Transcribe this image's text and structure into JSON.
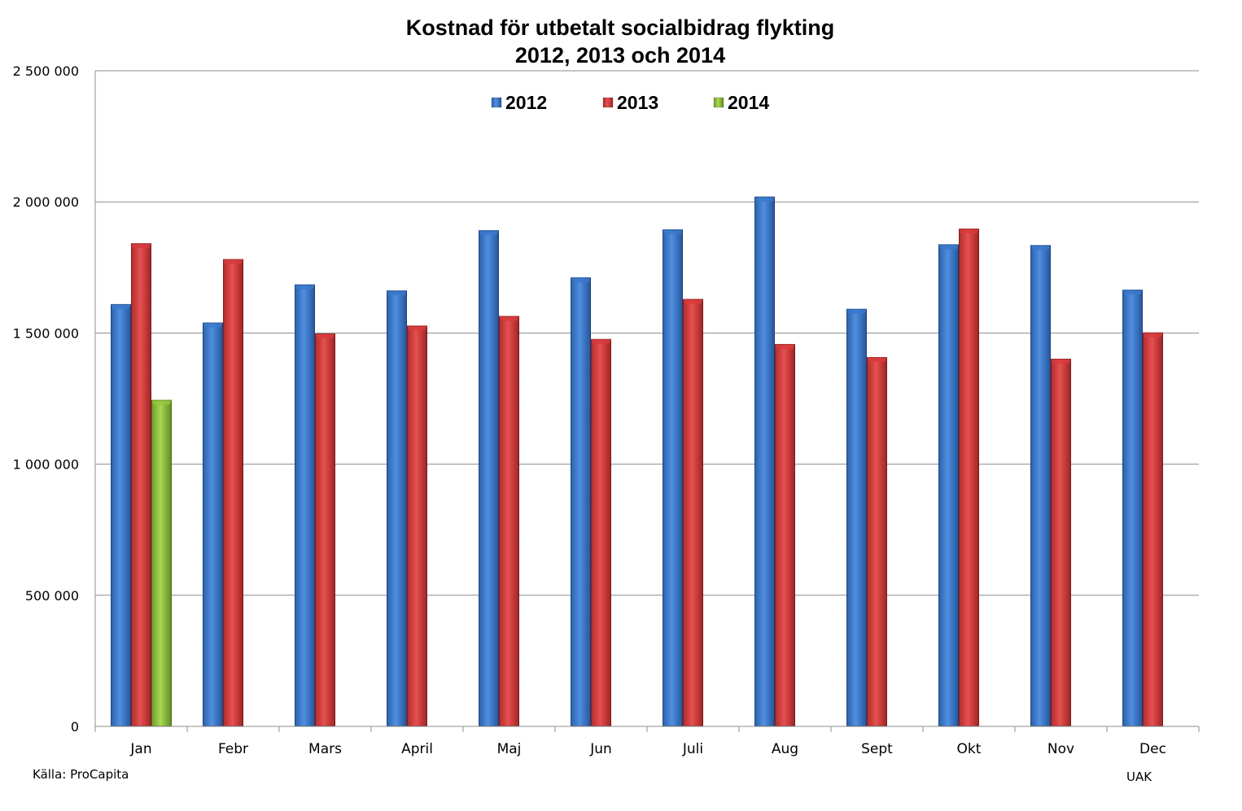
{
  "chart_data": {
    "type": "bar",
    "title": [
      "Kostnad för utbetalt socialbidrag flykting",
      "2012, 2013 och 2014"
    ],
    "xlabel": "",
    "ylabel": "",
    "ylim": [
      0,
      2500000
    ],
    "yticks": [
      0,
      500000,
      1000000,
      1500000,
      2000000,
      2500000
    ],
    "ytick_labels": [
      "0",
      "500 000",
      "1 000 000",
      "1 500 000",
      "2 000 000",
      "2 500 000"
    ],
    "grid": true,
    "legend_position": "top-center",
    "categories": [
      "Jan",
      "Febr",
      "Mars",
      "April",
      "Maj",
      "Jun",
      "Juli",
      "Aug",
      "Sept",
      "Okt",
      "Nov",
      "Dec"
    ],
    "series": [
      {
        "name": "2012",
        "color": "#3a78cc",
        "values": [
          1610000,
          1540000,
          1685000,
          1662000,
          1892000,
          1712000,
          1895000,
          2020000,
          1592000,
          1838000,
          1835000,
          1665000
        ]
      },
      {
        "name": "2013",
        "color": "#d83b3b",
        "values": [
          1842000,
          1782000,
          1498000,
          1528000,
          1565000,
          1477000,
          1630000,
          1458000,
          1408000,
          1898000,
          1402000,
          1502000
        ]
      },
      {
        "name": "2014",
        "color": "#92c83e",
        "values": [
          1245000,
          null,
          null,
          null,
          null,
          null,
          null,
          null,
          null,
          null,
          null,
          null
        ]
      }
    ]
  },
  "footer": {
    "source": "Källa: ProCapita",
    "credit": "UAK"
  }
}
